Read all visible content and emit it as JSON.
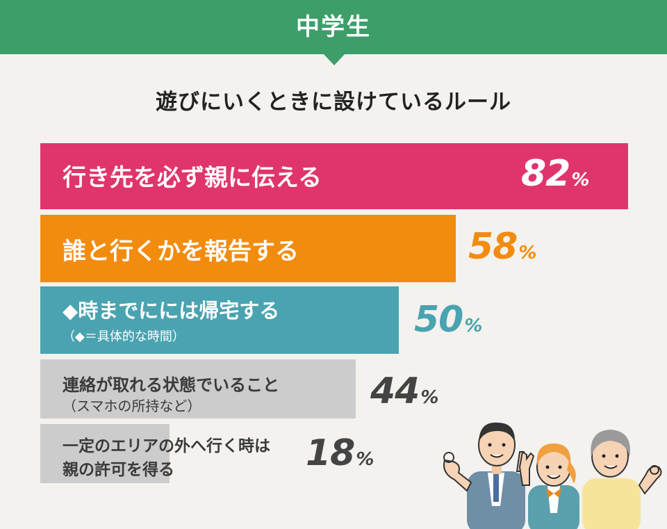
{
  "header": {
    "title": "中学生"
  },
  "chart_data": {
    "type": "bar",
    "title": "遊びにいくときに設けているルール",
    "unit": "%",
    "categories": [
      "行き先を必ず親に伝える",
      "誰と行くかを報告する",
      "◆時までにには帰宅する",
      "連絡が取れる状態でいること",
      "一定のエリアの外へ行く時は親の許可を得る"
    ],
    "bars": [
      {
        "label": "行き先を必ず親に伝える",
        "note": "",
        "value": 82,
        "value_text": "82",
        "color": "#e0356b",
        "label_color": "#ffffff",
        "value_color": "#ffffff"
      },
      {
        "label": "誰と行くかを報告する",
        "note": "",
        "value": 58,
        "value_text": "58",
        "color": "#f28c0f",
        "label_color": "#ffffff",
        "value_color": "#f28c0f"
      },
      {
        "label": "◆時までにには帰宅する",
        "note": "（◆＝具体的な時間）",
        "value": 50,
        "value_text": "50",
        "color": "#4aa3b0",
        "label_color": "#ffffff",
        "value_color": "#4aa3b0"
      },
      {
        "label": "連絡が取れる状態でいること",
        "note": "（スマホの所持など）",
        "value": 44,
        "value_text": "44",
        "color": "#cccccc",
        "label_color": "#3a3a3a",
        "value_color": "#444444"
      },
      {
        "label": "一定のエリアの外へ行く時は",
        "label2": "親の許可を得る",
        "note": "",
        "value": 18,
        "value_text": "18",
        "color": "#cccccc",
        "label_color": "#3a3a3a",
        "value_color": "#444444"
      }
    ],
    "colors": {
      "background": "#f4f2ee",
      "header": "#3e9e6a"
    }
  }
}
